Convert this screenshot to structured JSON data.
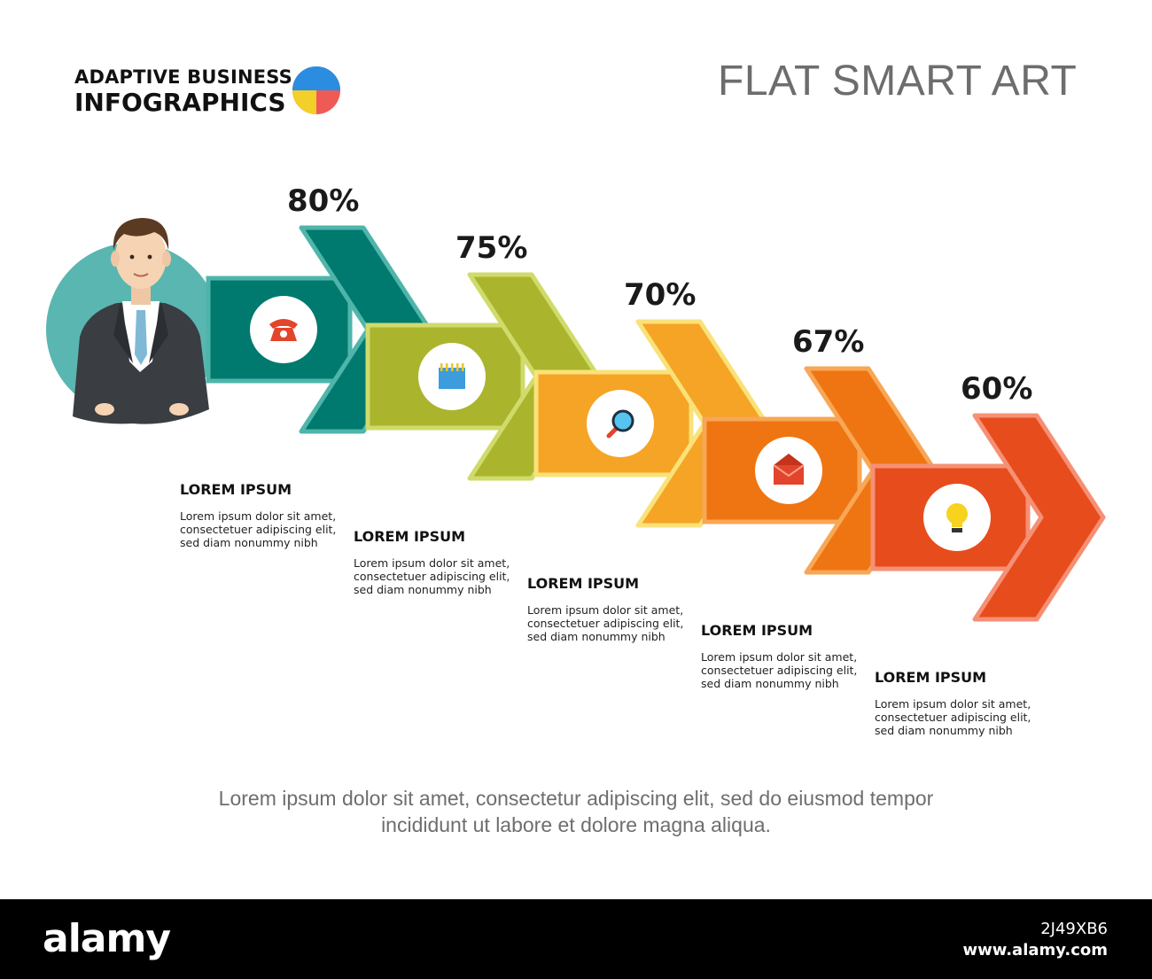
{
  "brand": {
    "line1": "ADAPTIVE BUSINESS",
    "line2": "INFOGRAPHICS",
    "logo_colors": [
      "#2a8de0",
      "#f3cf2a",
      "#ef5a56"
    ]
  },
  "title": "FLAT SMART ART",
  "steps": [
    {
      "value": "80%",
      "percent": 80,
      "icon": "telephone-icon",
      "color": "#007a6e",
      "border": "#4fb5ab",
      "caption_title": "LOREM IPSUM",
      "caption_body": [
        "Lorem ipsum dolor sit amet,",
        "consectetuer adipiscing elit,",
        "sed diam nonummy nibh"
      ]
    },
    {
      "value": "75%",
      "percent": 75,
      "icon": "calendar-icon",
      "color": "#aab52d",
      "border": "#cfdb6a",
      "caption_title": "LOREM IPSUM",
      "caption_body": [
        "Lorem ipsum dolor sit amet,",
        "consectetuer adipiscing elit,",
        "sed diam nonummy nibh"
      ]
    },
    {
      "value": "70%",
      "percent": 70,
      "icon": "magnifier-icon",
      "color": "#f6a425",
      "border": "#fae27a",
      "caption_title": "LOREM IPSUM",
      "caption_body": [
        "Lorem ipsum dolor sit amet,",
        "consectetuer adipiscing elit,",
        "sed diam nonummy nibh"
      ]
    },
    {
      "value": "67%",
      "percent": 67,
      "icon": "envelope-icon",
      "color": "#ef7512",
      "border": "#f7a756",
      "caption_title": "LOREM IPSUM",
      "caption_body": [
        "Lorem ipsum dolor sit amet,",
        "consectetuer adipiscing elit,",
        "sed diam nonummy nibh"
      ]
    },
    {
      "value": "60%",
      "percent": 60,
      "icon": "lightbulb-icon",
      "color": "#e74c1c",
      "border": "#f59075",
      "caption_title": "LOREM IPSUM",
      "caption_body": [
        "Lorem ipsum dolor sit amet,",
        "consectetuer adipiscing elit,",
        "sed diam nonummy nibh"
      ]
    }
  ],
  "footer": {
    "line1": "Lorem ipsum dolor sit amet, consectetur adipiscing elit, sed do eiusmod tempor",
    "line2": "incididunt ut labore et dolore magna aliqua."
  },
  "watermark": {
    "logo": "alamy",
    "image_id": "2J49XB6",
    "url": "www.alamy.com"
  }
}
